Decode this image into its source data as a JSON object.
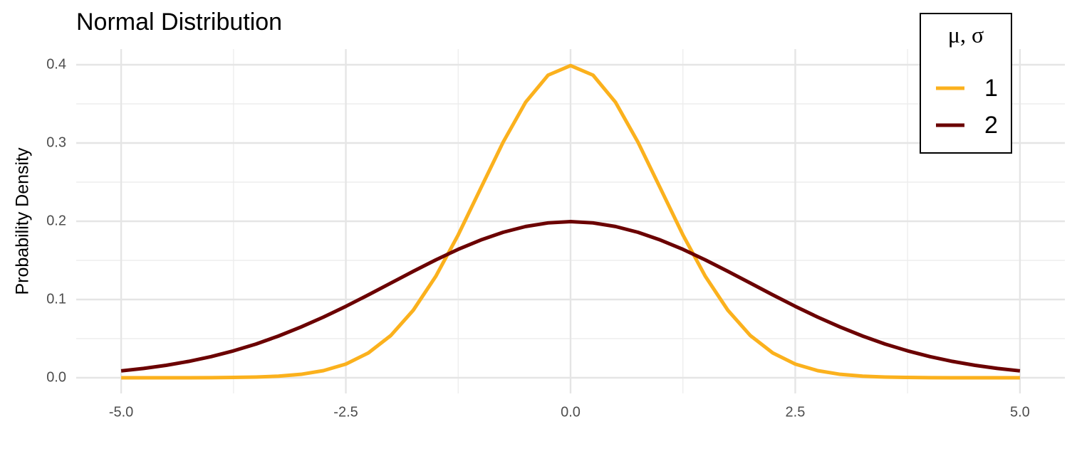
{
  "chart_data": {
    "type": "line",
    "title": "Normal Distribution",
    "ylabel": "Probability Density",
    "legend_title": "μ, σ",
    "legend": "top-right",
    "grid": true,
    "x": [
      -5,
      -4.75,
      -4.5,
      -4.25,
      -4,
      -3.75,
      -3.5,
      -3.25,
      -3,
      -2.75,
      -2.5,
      -2.25,
      -2,
      -1.75,
      -1.5,
      -1.25,
      -1,
      -0.75,
      -0.5,
      -0.25,
      0,
      0.25,
      0.5,
      0.75,
      1,
      1.25,
      1.5,
      1.75,
      2,
      2.25,
      2.5,
      2.75,
      3,
      3.25,
      3.5,
      3.75,
      4,
      4.25,
      4.5,
      4.75,
      5
    ],
    "series": [
      {
        "name": "1",
        "color": "#fbb11d",
        "values": [
          0,
          0,
          0,
          0,
          0.0001,
          0.0004,
          0.0009,
          0.002,
          0.0044,
          0.0091,
          0.0175,
          0.0317,
          0.054,
          0.0863,
          0.1295,
          0.1826,
          0.242,
          0.3011,
          0.3521,
          0.3867,
          0.3989,
          0.3867,
          0.3521,
          0.3011,
          0.242,
          0.1826,
          0.1295,
          0.0863,
          0.054,
          0.0317,
          0.0175,
          0.0091,
          0.0044,
          0.002,
          0.0009,
          0.0004,
          0.0001,
          0,
          0,
          0,
          0
        ]
      },
      {
        "name": "2",
        "color": "#6b0000",
        "values": [
          0.0088,
          0.0119,
          0.0159,
          0.0209,
          0.027,
          0.0344,
          0.0431,
          0.0533,
          0.0648,
          0.0775,
          0.0913,
          0.1059,
          0.121,
          0.136,
          0.1506,
          0.1641,
          0.176,
          0.1859,
          0.1933,
          0.1979,
          0.1995,
          0.1979,
          0.1933,
          0.1859,
          0.176,
          0.1641,
          0.1506,
          0.136,
          0.121,
          0.1059,
          0.0913,
          0.0775,
          0.0648,
          0.0533,
          0.0431,
          0.0344,
          0.027,
          0.0209,
          0.0159,
          0.0119,
          0.0088
        ]
      }
    ],
    "xlim": [
      -5.5,
      5.5
    ],
    "ylim": [
      -0.02,
      0.42
    ],
    "xticks": [
      {
        "value": -5,
        "label": "-5.0"
      },
      {
        "value": -2.5,
        "label": "-2.5"
      },
      {
        "value": 0,
        "label": "0.0"
      },
      {
        "value": 2.5,
        "label": "2.5"
      },
      {
        "value": 5,
        "label": "5.0"
      }
    ],
    "yticks": [
      {
        "value": 0,
        "label": "0.0"
      },
      0.1,
      0.2,
      0.3,
      0.4
    ]
  }
}
